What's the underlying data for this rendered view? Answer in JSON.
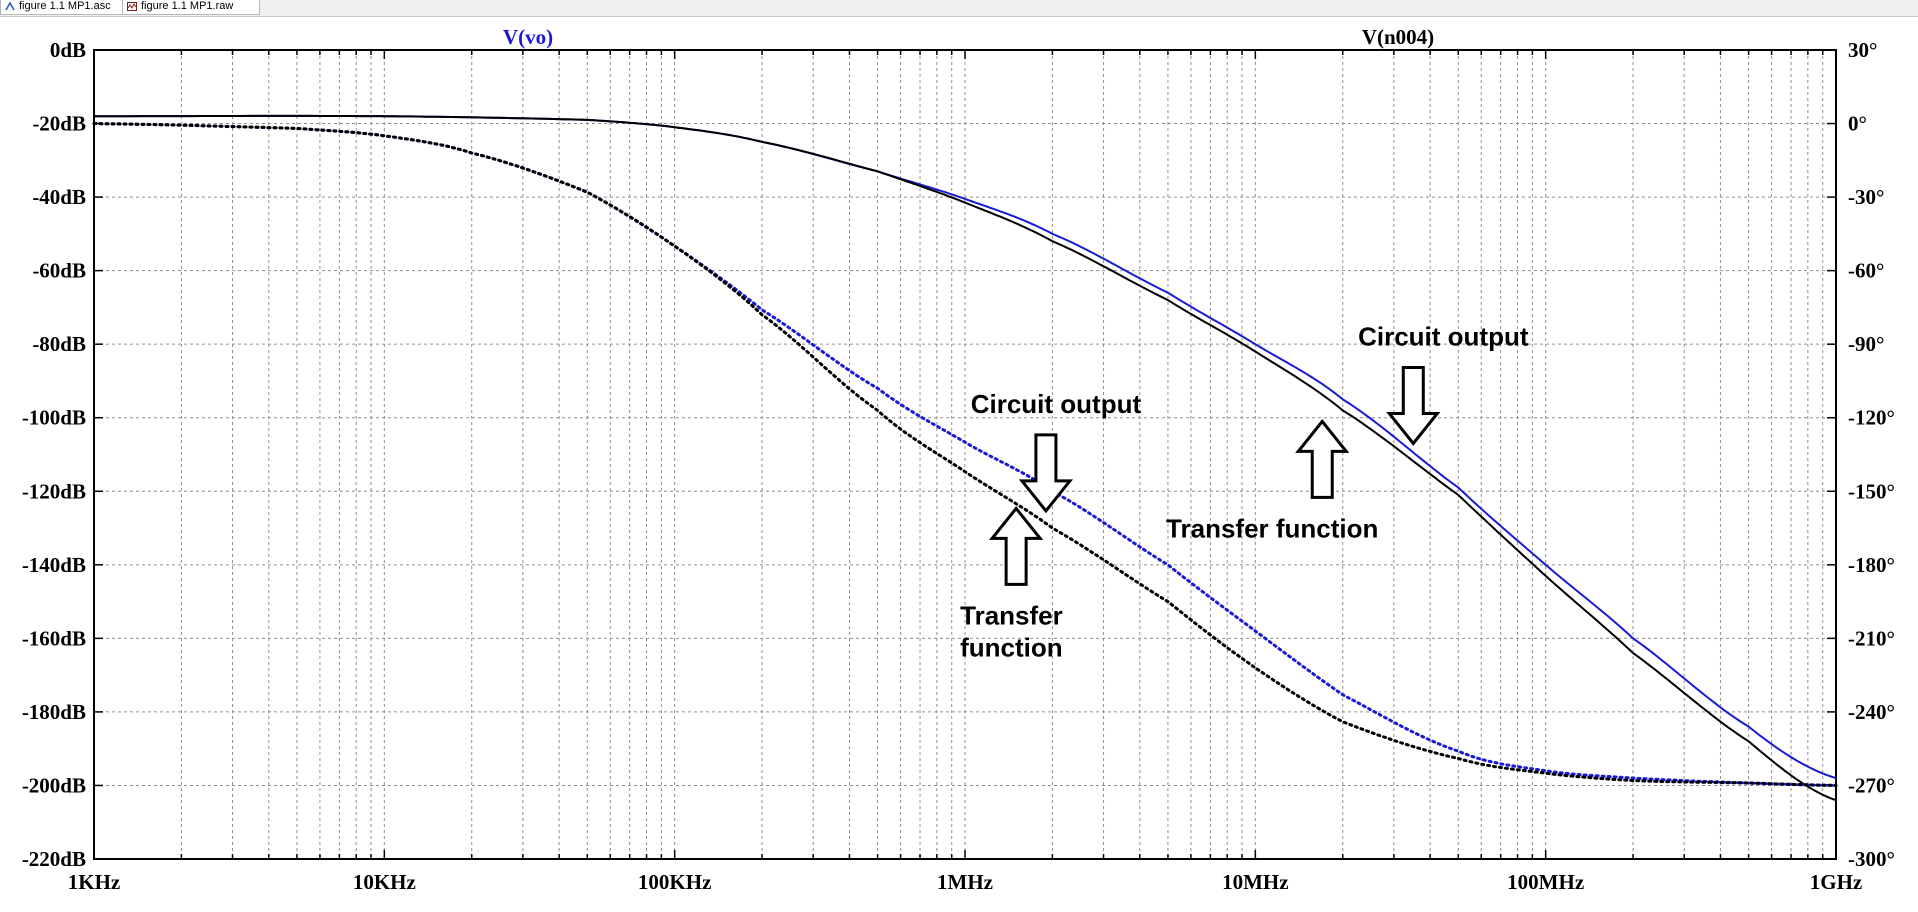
{
  "tabs": [
    {
      "label": "figure 1.1 MP1.asc",
      "icon": "schematic-icon"
    },
    {
      "label": "figure 1.1 MP1.raw",
      "icon": "waveform-icon"
    }
  ],
  "chart_data": {
    "type": "line",
    "x_scale": "log",
    "x_range_hz": [
      1000,
      1000000000
    ],
    "x_tick_labels": [
      "1KHz",
      "10KHz",
      "100KHz",
      "1MHz",
      "10MHz",
      "100MHz",
      "1GHz"
    ],
    "y_left_range_db": [
      -220,
      0
    ],
    "y_left_tick_labels": [
      "0dB",
      "-20dB",
      "-40dB",
      "-60dB",
      "-80dB",
      "-100dB",
      "-120dB",
      "-140dB",
      "-160dB",
      "-180dB",
      "-200dB",
      "-220dB"
    ],
    "y_right_range_deg": [
      -300,
      30
    ],
    "y_right_tick_labels": [
      "30°",
      "0°",
      "-30°",
      "-60°",
      "-90°",
      "-120°",
      "-150°",
      "-180°",
      "-210°",
      "-240°",
      "-270°",
      "-300°"
    ],
    "grid": true,
    "trace_titles": [
      {
        "label": "V(vo)",
        "color": "#1a1ad6"
      },
      {
        "label": "V(n004)",
        "color": "#000000"
      }
    ],
    "series": [
      {
        "color": "#1a1ad6",
        "style": "solid",
        "axis": "left",
        "x_hz": [
          1000,
          10000,
          50000,
          100000,
          200000,
          500000,
          1000000,
          2000000,
          5000000,
          10000000,
          20000000,
          50000000,
          100000000,
          200000000,
          500000000,
          1000000000
        ],
        "y_db": [
          -18,
          -18,
          -19,
          -21,
          -25,
          -33,
          -40.5,
          -50,
          -66,
          -80,
          -95,
          -119,
          -140,
          -160,
          -184,
          -198
        ]
      },
      {
        "color": "#000000",
        "style": "solid",
        "axis": "left",
        "x_hz": [
          1000,
          10000,
          50000,
          100000,
          200000,
          500000,
          1000000,
          2000000,
          5000000,
          10000000,
          20000000,
          50000000,
          100000000,
          200000000,
          500000000,
          1000000000
        ],
        "y_db": [
          -18,
          -18,
          -19,
          -21,
          -25,
          -33,
          -41.5,
          -52,
          -68,
          -82,
          -98,
          -121,
          -143,
          -164,
          -188,
          -204
        ]
      },
      {
        "color": "#1a1ad6",
        "style": "dotted",
        "axis": "right",
        "x_hz": [
          1000,
          5000,
          10000,
          20000,
          50000,
          100000,
          200000,
          500000,
          1000000,
          2000000,
          5000000,
          10000000,
          20000000,
          50000000,
          100000000,
          200000000,
          500000000,
          1000000000
        ],
        "y_deg": [
          0,
          -2,
          -5,
          -12,
          -28,
          -50,
          -76,
          -108,
          -130,
          -150,
          -180,
          -207,
          -233,
          -256,
          -264,
          -267,
          -269,
          -270
        ]
      },
      {
        "color": "#000000",
        "style": "dotted",
        "axis": "right",
        "x_hz": [
          1000,
          5000,
          10000,
          20000,
          50000,
          100000,
          200000,
          500000,
          1000000,
          2000000,
          5000000,
          10000000,
          20000000,
          50000000,
          100000000,
          200000000,
          500000000,
          1000000000
        ],
        "y_deg": [
          0,
          -2,
          -5,
          -12,
          -28,
          -50,
          -78,
          -117,
          -142,
          -165,
          -195,
          -222,
          -244,
          -259,
          -265,
          -268,
          -269,
          -270
        ]
      }
    ],
    "annotations": [
      {
        "lines": [
          "Circuit output"
        ],
        "arrow": "down",
        "target": "blue-dotted-phase",
        "x_hz": 1900000,
        "y_deg": -158
      },
      {
        "lines": [
          "Transfer",
          "function"
        ],
        "arrow": "up",
        "target": "black-dotted-phase",
        "x_hz": 1500000,
        "y_deg": -157
      },
      {
        "lines": [
          "Circuit output"
        ],
        "arrow": "down",
        "target": "blue-solid-magnitude",
        "x_hz": 35000000,
        "y_db": -107
      },
      {
        "lines": [
          "Transfer function"
        ],
        "arrow": "up",
        "target": "black-solid-magnitude",
        "x_hz": 17000000,
        "y_db": -101
      }
    ]
  }
}
